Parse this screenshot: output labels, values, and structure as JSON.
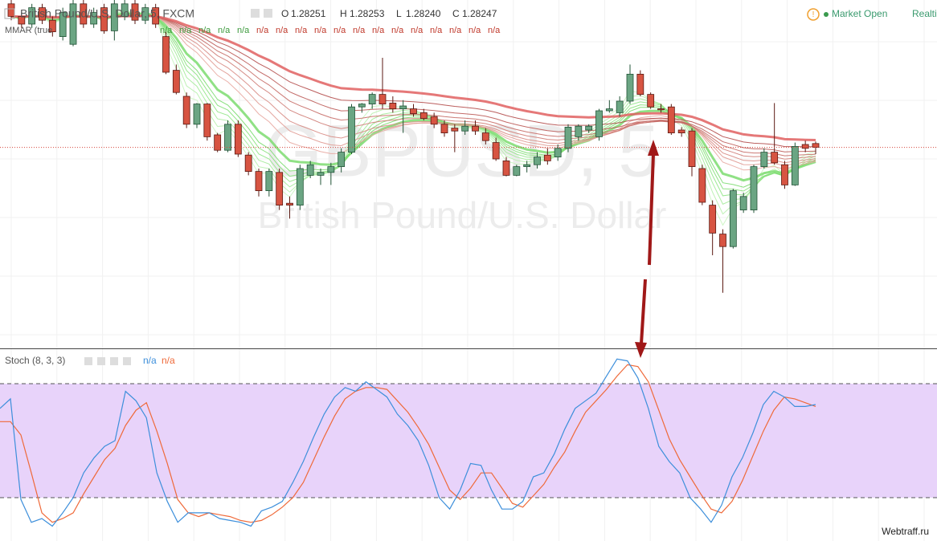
{
  "header": {
    "title": "British Pound/U.S. Dollar, 5, FXCM",
    "ohlc": [
      "O",
      "1.28251",
      "H",
      "1.28253",
      "L",
      "1.28240",
      "C",
      "1.28247"
    ],
    "mmar_label": "MMAR (true",
    "mmar_values": [
      "n/a",
      "n/a",
      "n/a",
      "n/a",
      "n/a",
      "n/a",
      "n/a",
      "n/a",
      "n/a",
      "n/a",
      "n/a",
      "n/a",
      "n/a",
      "n/a",
      "n/a",
      "n/a",
      "n/a",
      "n/a"
    ],
    "status": "Market Open",
    "mode": "Realtime"
  },
  "chart_data": [
    {
      "type": "candlestick",
      "watermark": "GBPUSD, 5",
      "watermark_subtitle": "British Pound/U.S. Dollar",
      "up_color": "#6ba583",
      "down_color": "#d75442",
      "ylim": [
        1.2804,
        1.284
      ],
      "open": [
        1.28396,
        1.28383,
        1.28375,
        1.28392,
        1.28379,
        1.28362,
        1.28354,
        1.28396,
        1.28375,
        1.28392,
        1.28368,
        1.28383,
        1.28396,
        1.28379,
        1.28392,
        1.28362,
        1.28327,
        1.283,
        1.28271,
        1.28292,
        1.2826,
        1.28244,
        1.28271,
        1.28239,
        1.28222,
        1.28202,
        1.28221,
        1.28189,
        1.28187,
        1.28218,
        1.28218,
        1.28221,
        1.28227,
        1.28242,
        1.28289,
        1.28292,
        1.28302,
        1.28293,
        1.28287,
        1.28287,
        1.28283,
        1.28279,
        1.28271,
        1.28267,
        1.28264,
        1.28269,
        1.28262,
        1.28252,
        1.28233,
        1.28218,
        1.28227,
        1.28229,
        1.28239,
        1.28237,
        1.28246,
        1.28258,
        1.28265,
        1.28258,
        1.28285,
        1.28283,
        1.28295,
        1.28323,
        1.28302,
        1.28287,
        1.28289,
        1.28265,
        1.28264,
        1.28225,
        1.28187,
        1.28157,
        1.28144,
        1.28182,
        1.28182,
        1.28227,
        1.28242,
        1.28229,
        1.28208,
        1.2825,
        1.28251
      ],
      "high": [
        1.284,
        1.28387,
        1.28396,
        1.28396,
        1.28383,
        1.28392,
        1.284,
        1.284,
        1.28392,
        1.28396,
        1.284,
        1.284,
        1.284,
        1.28396,
        1.28396,
        1.28367,
        1.28333,
        1.28304,
        1.28293,
        1.28293,
        1.28262,
        1.28275,
        1.28275,
        1.28242,
        1.28225,
        1.28225,
        1.28225,
        1.28196,
        1.28229,
        1.28233,
        1.28225,
        1.28231,
        1.28246,
        1.28292,
        1.28293,
        1.28304,
        1.2834,
        1.283,
        1.28296,
        1.28292,
        1.28287,
        1.28283,
        1.28275,
        1.28271,
        1.28275,
        1.28275,
        1.28267,
        1.28257,
        1.28237,
        1.28229,
        1.28233,
        1.28242,
        1.28246,
        1.2825,
        1.28271,
        1.28271,
        1.28271,
        1.28287,
        1.28296,
        1.283,
        1.28333,
        1.28327,
        1.28304,
        1.28292,
        1.28292,
        1.28268,
        1.28267,
        1.28229,
        1.28192,
        1.28162,
        1.28204,
        1.282,
        1.28229,
        1.28246,
        1.28293,
        1.28233,
        1.28252,
        1.28254,
        1.28253
      ],
      "low": [
        1.28379,
        1.28371,
        1.28371,
        1.28375,
        1.28362,
        1.28358,
        1.28352,
        1.28371,
        1.28371,
        1.28365,
        1.28358,
        1.28379,
        1.28375,
        1.28375,
        1.28371,
        1.28323,
        1.28302,
        1.28267,
        1.28267,
        1.28254,
        1.28242,
        1.28242,
        1.28237,
        1.28218,
        1.28196,
        1.28196,
        1.28182,
        1.28173,
        1.28182,
        1.28215,
        1.28208,
        1.28208,
        1.28221,
        1.2824,
        1.28283,
        1.28287,
        1.28287,
        1.28283,
        1.28262,
        1.28279,
        1.28275,
        1.28267,
        1.28258,
        1.28242,
        1.2826,
        1.2826,
        1.2825,
        1.28233,
        1.28217,
        1.28217,
        1.28221,
        1.28225,
        1.28229,
        1.28233,
        1.28242,
        1.28254,
        1.28262,
        1.28254,
        1.28283,
        1.28279,
        1.28292,
        1.283,
        1.28287,
        1.28283,
        1.2826,
        1.28258,
        1.28217,
        1.28187,
        1.28135,
        1.28096,
        1.28142,
        1.28179,
        1.28179,
        1.28225,
        1.28229,
        1.28204,
        1.28207,
        1.28242,
        1.2824
      ],
      "close": [
        1.28383,
        1.28375,
        1.28392,
        1.28379,
        1.28367,
        1.28387,
        1.28396,
        1.28375,
        1.28387,
        1.28368,
        1.28396,
        1.28396,
        1.28379,
        1.28392,
        1.28375,
        1.28325,
        1.28304,
        1.28271,
        1.28292,
        1.28258,
        1.28244,
        1.28271,
        1.2824,
        1.28222,
        1.28202,
        1.28222,
        1.28187,
        1.28187,
        1.28225,
        1.28229,
        1.28221,
        1.28227,
        1.28242,
        1.28289,
        1.28292,
        1.28302,
        1.28292,
        1.28287,
        1.2829,
        1.28282,
        1.28277,
        1.28271,
        1.28262,
        1.28264,
        1.28269,
        1.28264,
        1.28254,
        1.28235,
        1.28218,
        1.28227,
        1.28229,
        1.28237,
        1.28233,
        1.28246,
        1.28268,
        1.28269,
        1.28269,
        1.28285,
        1.28287,
        1.28295,
        1.28323,
        1.28302,
        1.28289,
        1.28286,
        1.28262,
        1.28262,
        1.28227,
        1.2819,
        1.28158,
        1.28144,
        1.28202,
        1.28196,
        1.28227,
        1.28242,
        1.28231,
        1.28208,
        1.28248,
        1.28246,
        1.28247
      ],
      "price_line_color": "#d6453d"
    },
    {
      "type": "line",
      "title": "Stoch (8, 3, 3)",
      "legend_values": [
        "n/a",
        "n/a"
      ],
      "ylim": [
        0,
        100
      ],
      "bands": [
        20,
        80
      ],
      "band_color": "#e8d3fa",
      "series": [
        {
          "color": "#3d8fdb",
          "values": [
            67,
            72,
            19,
            7,
            9,
            5,
            12,
            20,
            33,
            41,
            47,
            50,
            76,
            71,
            62,
            33,
            18,
            7,
            12,
            12,
            12,
            9,
            8,
            7,
            5,
            13,
            15,
            18,
            28,
            39,
            52,
            64,
            73,
            78,
            76,
            81,
            77,
            73,
            64,
            58,
            50,
            37,
            20,
            14,
            24,
            38,
            37,
            24,
            14,
            14,
            18,
            31,
            33,
            43,
            56,
            67,
            71,
            75,
            84,
            93,
            92,
            83,
            67,
            47,
            39,
            33,
            20,
            14,
            7,
            16,
            31,
            41,
            54,
            69,
            76,
            73,
            68,
            68,
            69
          ]
        },
        {
          "color": "#ef6a3a",
          "values": [
            60,
            60,
            53,
            33,
            12,
            7,
            9,
            12,
            22,
            31,
            40,
            46,
            58,
            66,
            70,
            55,
            38,
            19,
            12,
            10,
            12,
            11,
            10,
            8,
            7,
            8,
            11,
            15,
            20,
            28,
            40,
            52,
            63,
            72,
            76,
            78,
            78,
            77,
            71,
            65,
            57,
            48,
            36,
            24,
            19,
            25,
            33,
            33,
            25,
            17,
            15,
            21,
            27,
            36,
            44,
            55,
            65,
            71,
            77,
            84,
            90,
            89,
            81,
            66,
            51,
            40,
            31,
            22,
            14,
            12,
            18,
            29,
            42,
            55,
            66,
            73,
            72,
            70,
            68
          ]
        }
      ]
    }
  ],
  "footer": "Webtraff.ru"
}
